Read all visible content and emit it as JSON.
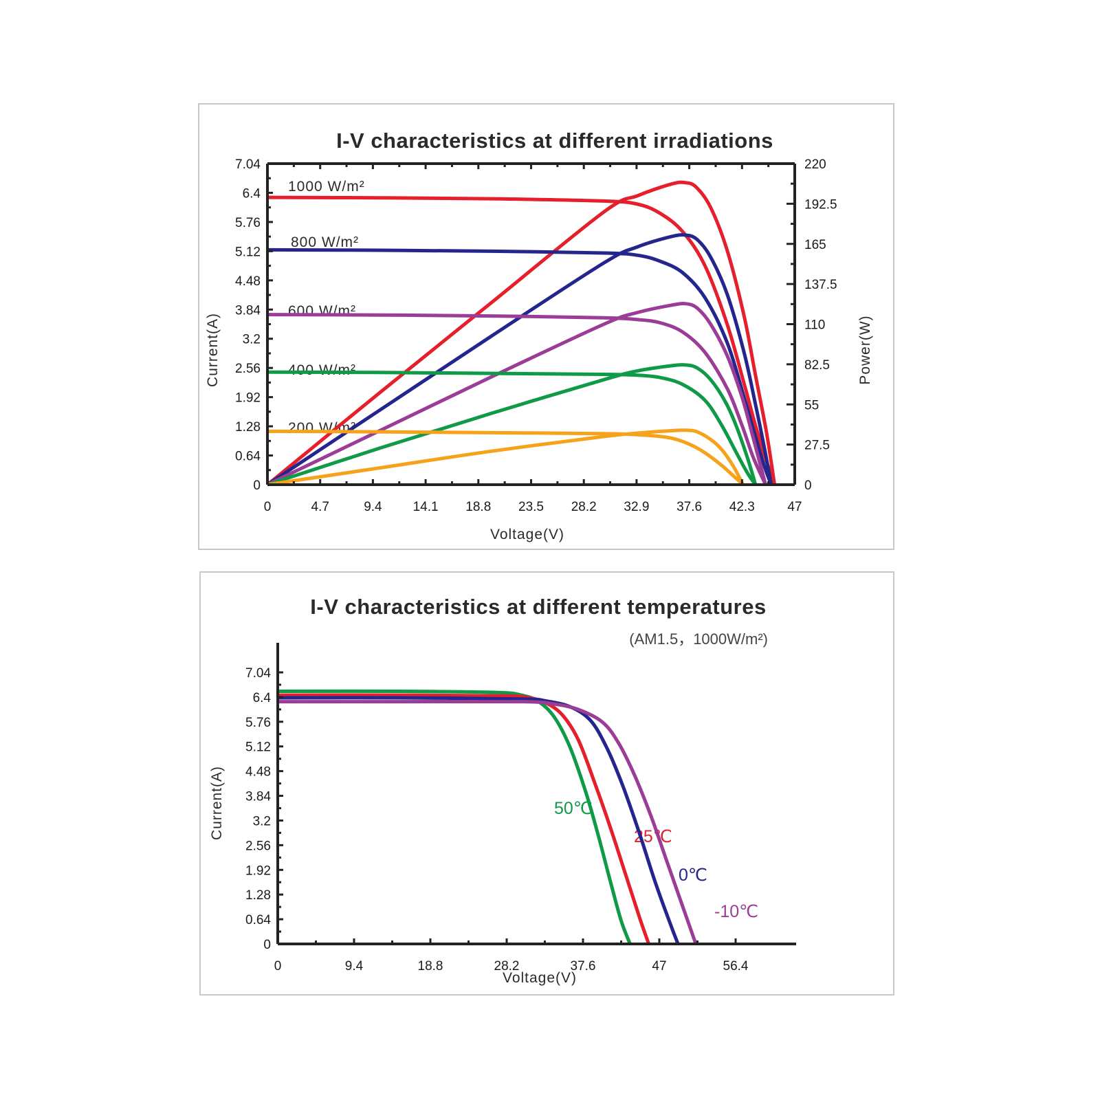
{
  "chart_data": [
    {
      "type": "line",
      "title": "I-V characteristics at different irradiations",
      "xlabel": "Voltage(V)",
      "ylabel": "Current(A)",
      "y2label": "Power(W)",
      "xlim": [
        0,
        47
      ],
      "ylim": [
        0,
        7.04
      ],
      "y2lim": [
        0,
        220
      ],
      "x_ticks": [
        "0",
        "4.7",
        "9.4",
        "14.1",
        "18.8",
        "23.5",
        "28.2",
        "32.9",
        "37.6",
        "42.3",
        "47"
      ],
      "y_ticks": [
        "0",
        "0.64",
        "1.28",
        "1.92",
        "2.56",
        "3.2",
        "3.84",
        "4.48",
        "5.12",
        "5.76",
        "6.4",
        "7.04"
      ],
      "y2_ticks": [
        "0",
        "27.5",
        "55",
        "82.5",
        "110",
        "137.5",
        "165",
        "192.5",
        "220"
      ],
      "grid": false,
      "series": [
        {
          "name": "1000 W/m²",
          "color": "#e51f2b",
          "iv": [
            [
              0,
              6.3
            ],
            [
              10,
              6.29
            ],
            [
              20,
              6.27
            ],
            [
              30,
              6.22
            ],
            [
              33,
              6.15
            ],
            [
              35,
              5.95
            ],
            [
              37,
              5.55
            ],
            [
              39,
              4.8
            ],
            [
              41,
              3.5
            ],
            [
              42.5,
              2.2
            ],
            [
              43.5,
              1.3
            ],
            [
              44.5,
              0.5
            ],
            [
              45.2,
              0
            ]
          ],
          "pv": [
            [
              0,
              0
            ],
            [
              10,
              63
            ],
            [
              20,
              125
            ],
            [
              30,
              187
            ],
            [
              33,
              198
            ],
            [
              36,
              206
            ],
            [
              37.2,
              207
            ],
            [
              38.2,
              204
            ],
            [
              39.5,
              190
            ],
            [
              41,
              160
            ],
            [
              42.5,
              115
            ],
            [
              43.5,
              75
            ],
            [
              44.5,
              35
            ],
            [
              45.2,
              0
            ]
          ]
        },
        {
          "name": "800 W/m²",
          "color": "#25258e",
          "iv": [
            [
              0,
              5.15
            ],
            [
              10,
              5.14
            ],
            [
              20,
              5.12
            ],
            [
              30,
              5.08
            ],
            [
              33,
              5.03
            ],
            [
              35,
              4.9
            ],
            [
              37,
              4.65
            ],
            [
              39,
              4.1
            ],
            [
              41,
              3.1
            ],
            [
              42.5,
              1.9
            ],
            [
              43.5,
              1.05
            ],
            [
              44.3,
              0.4
            ],
            [
              44.9,
              0
            ]
          ],
          "pv": [
            [
              0,
              0
            ],
            [
              10,
              51
            ],
            [
              20,
              102
            ],
            [
              30,
              152
            ],
            [
              33,
              163
            ],
            [
              36,
              170
            ],
            [
              37.3,
              171
            ],
            [
              38.3,
              168
            ],
            [
              39.5,
              156
            ],
            [
              41,
              130
            ],
            [
              42.5,
              90
            ],
            [
              43.5,
              55
            ],
            [
              44.3,
              25
            ],
            [
              44.9,
              0
            ]
          ]
        },
        {
          "name": "600 W/m²",
          "color": "#9b3d96",
          "iv": [
            [
              0,
              3.73
            ],
            [
              10,
              3.72
            ],
            [
              20,
              3.7
            ],
            [
              30,
              3.66
            ],
            [
              33,
              3.62
            ],
            [
              35,
              3.55
            ],
            [
              37,
              3.35
            ],
            [
              39,
              2.9
            ],
            [
              41,
              2.1
            ],
            [
              42.3,
              1.3
            ],
            [
              43.3,
              0.6
            ],
            [
              44.4,
              0
            ]
          ],
          "pv": [
            [
              0,
              0
            ],
            [
              10,
              37
            ],
            [
              20,
              74
            ],
            [
              30,
              110
            ],
            [
              33,
              118
            ],
            [
              36,
              123
            ],
            [
              37.3,
              124
            ],
            [
              38.3,
              121
            ],
            [
              39.5,
              110
            ],
            [
              41,
              88
            ],
            [
              42.3,
              60
            ],
            [
              43.3,
              32
            ],
            [
              44.4,
              0
            ]
          ]
        },
        {
          "name": "400 W/m²",
          "color": "#0e9a47",
          "iv": [
            [
              0,
              2.47
            ],
            [
              10,
              2.46
            ],
            [
              20,
              2.44
            ],
            [
              30,
              2.42
            ],
            [
              33,
              2.4
            ],
            [
              35,
              2.35
            ],
            [
              37,
              2.2
            ],
            [
              39,
              1.85
            ],
            [
              40.5,
              1.3
            ],
            [
              41.8,
              0.7
            ],
            [
              42.8,
              0.25
            ],
            [
              43.5,
              0
            ]
          ],
          "pv": [
            [
              0,
              0
            ],
            [
              10,
              25
            ],
            [
              20,
              49
            ],
            [
              30,
              72
            ],
            [
              33,
              78
            ],
            [
              36,
              81.5
            ],
            [
              37.3,
              82
            ],
            [
              38.3,
              80
            ],
            [
              39.5,
              72
            ],
            [
              40.8,
              57
            ],
            [
              41.8,
              40
            ],
            [
              42.8,
              18
            ],
            [
              43.5,
              0
            ]
          ]
        },
        {
          "name": "200 W/m²",
          "color": "#f6a21a",
          "iv": [
            [
              0,
              1.17
            ],
            [
              10,
              1.16
            ],
            [
              20,
              1.14
            ],
            [
              30,
              1.12
            ],
            [
              34,
              1.08
            ],
            [
              36,
              1.02
            ],
            [
              37.5,
              0.9
            ],
            [
              39,
              0.7
            ],
            [
              40.5,
              0.42
            ],
            [
              41.5,
              0.2
            ],
            [
              42.4,
              0
            ]
          ],
          "pv": [
            [
              0,
              0
            ],
            [
              10,
              11.5
            ],
            [
              20,
              23
            ],
            [
              30,
              33
            ],
            [
              34,
              36
            ],
            [
              36,
              37
            ],
            [
              37.2,
              37.3
            ],
            [
              38.2,
              36.5
            ],
            [
              39.5,
              31
            ],
            [
              40.5,
              24
            ],
            [
              41.5,
              13
            ],
            [
              42.4,
              0
            ]
          ]
        }
      ]
    },
    {
      "type": "line",
      "title": "I-V characteristics at different temperatures",
      "subtitle": "(AM1.5，1000W/m²)",
      "xlabel": "Voltage(V)",
      "ylabel": "Current(A)",
      "xlim": [
        0,
        56.4
      ],
      "ylim": [
        0,
        7.04
      ],
      "x_ticks": [
        "0",
        "9.4",
        "18.8",
        "28.2",
        "37.6",
        "47",
        "56.4"
      ],
      "y_ticks": [
        "0",
        "0.64",
        "1.28",
        "1.92",
        "2.56",
        "3.2",
        "3.84",
        "4.48",
        "5.12",
        "5.76",
        "6.4",
        "7.04"
      ],
      "grid": false,
      "series": [
        {
          "name": "50℃",
          "color": "#0e9a47",
          "iv": [
            [
              0,
              6.55
            ],
            [
              15,
              6.55
            ],
            [
              27,
              6.52
            ],
            [
              30,
              6.45
            ],
            [
              32,
              6.3
            ],
            [
              34,
              5.9
            ],
            [
              36,
              5.1
            ],
            [
              38,
              3.9
            ],
            [
              39.5,
              2.8
            ],
            [
              41,
              1.6
            ],
            [
              42.3,
              0.6
            ],
            [
              43.4,
              0
            ]
          ]
        },
        {
          "name": "25℃",
          "color": "#e51f2b",
          "iv": [
            [
              0,
              6.45
            ],
            [
              15,
              6.45
            ],
            [
              28,
              6.43
            ],
            [
              31,
              6.38
            ],
            [
              33,
              6.25
            ],
            [
              35,
              5.95
            ],
            [
              37,
              5.3
            ],
            [
              39,
              4.2
            ],
            [
              41,
              3.0
            ],
            [
              43,
              1.7
            ],
            [
              44.7,
              0.6
            ],
            [
              45.7,
              0
            ]
          ]
        },
        {
          "name": "0℃",
          "color": "#25258e",
          "iv": [
            [
              0,
              6.38
            ],
            [
              15,
              6.38
            ],
            [
              30,
              6.35
            ],
            [
              33,
              6.3
            ],
            [
              36,
              6.15
            ],
            [
              38.5,
              5.8
            ],
            [
              40.5,
              5.1
            ],
            [
              42.5,
              4.1
            ],
            [
              44.5,
              2.9
            ],
            [
              46.5,
              1.6
            ],
            [
              48.3,
              0.55
            ],
            [
              49.3,
              0
            ]
          ]
        },
        {
          "name": "-10℃",
          "color": "#9b3d96",
          "iv": [
            [
              0,
              6.28
            ],
            [
              15,
              6.28
            ],
            [
              30,
              6.28
            ],
            [
              34,
              6.22
            ],
            [
              37,
              6.08
            ],
            [
              40,
              5.75
            ],
            [
              42,
              5.2
            ],
            [
              44,
              4.35
            ],
            [
              46,
              3.3
            ],
            [
              48,
              2.1
            ],
            [
              50,
              0.9
            ],
            [
              51.5,
              0
            ]
          ]
        }
      ]
    }
  ]
}
